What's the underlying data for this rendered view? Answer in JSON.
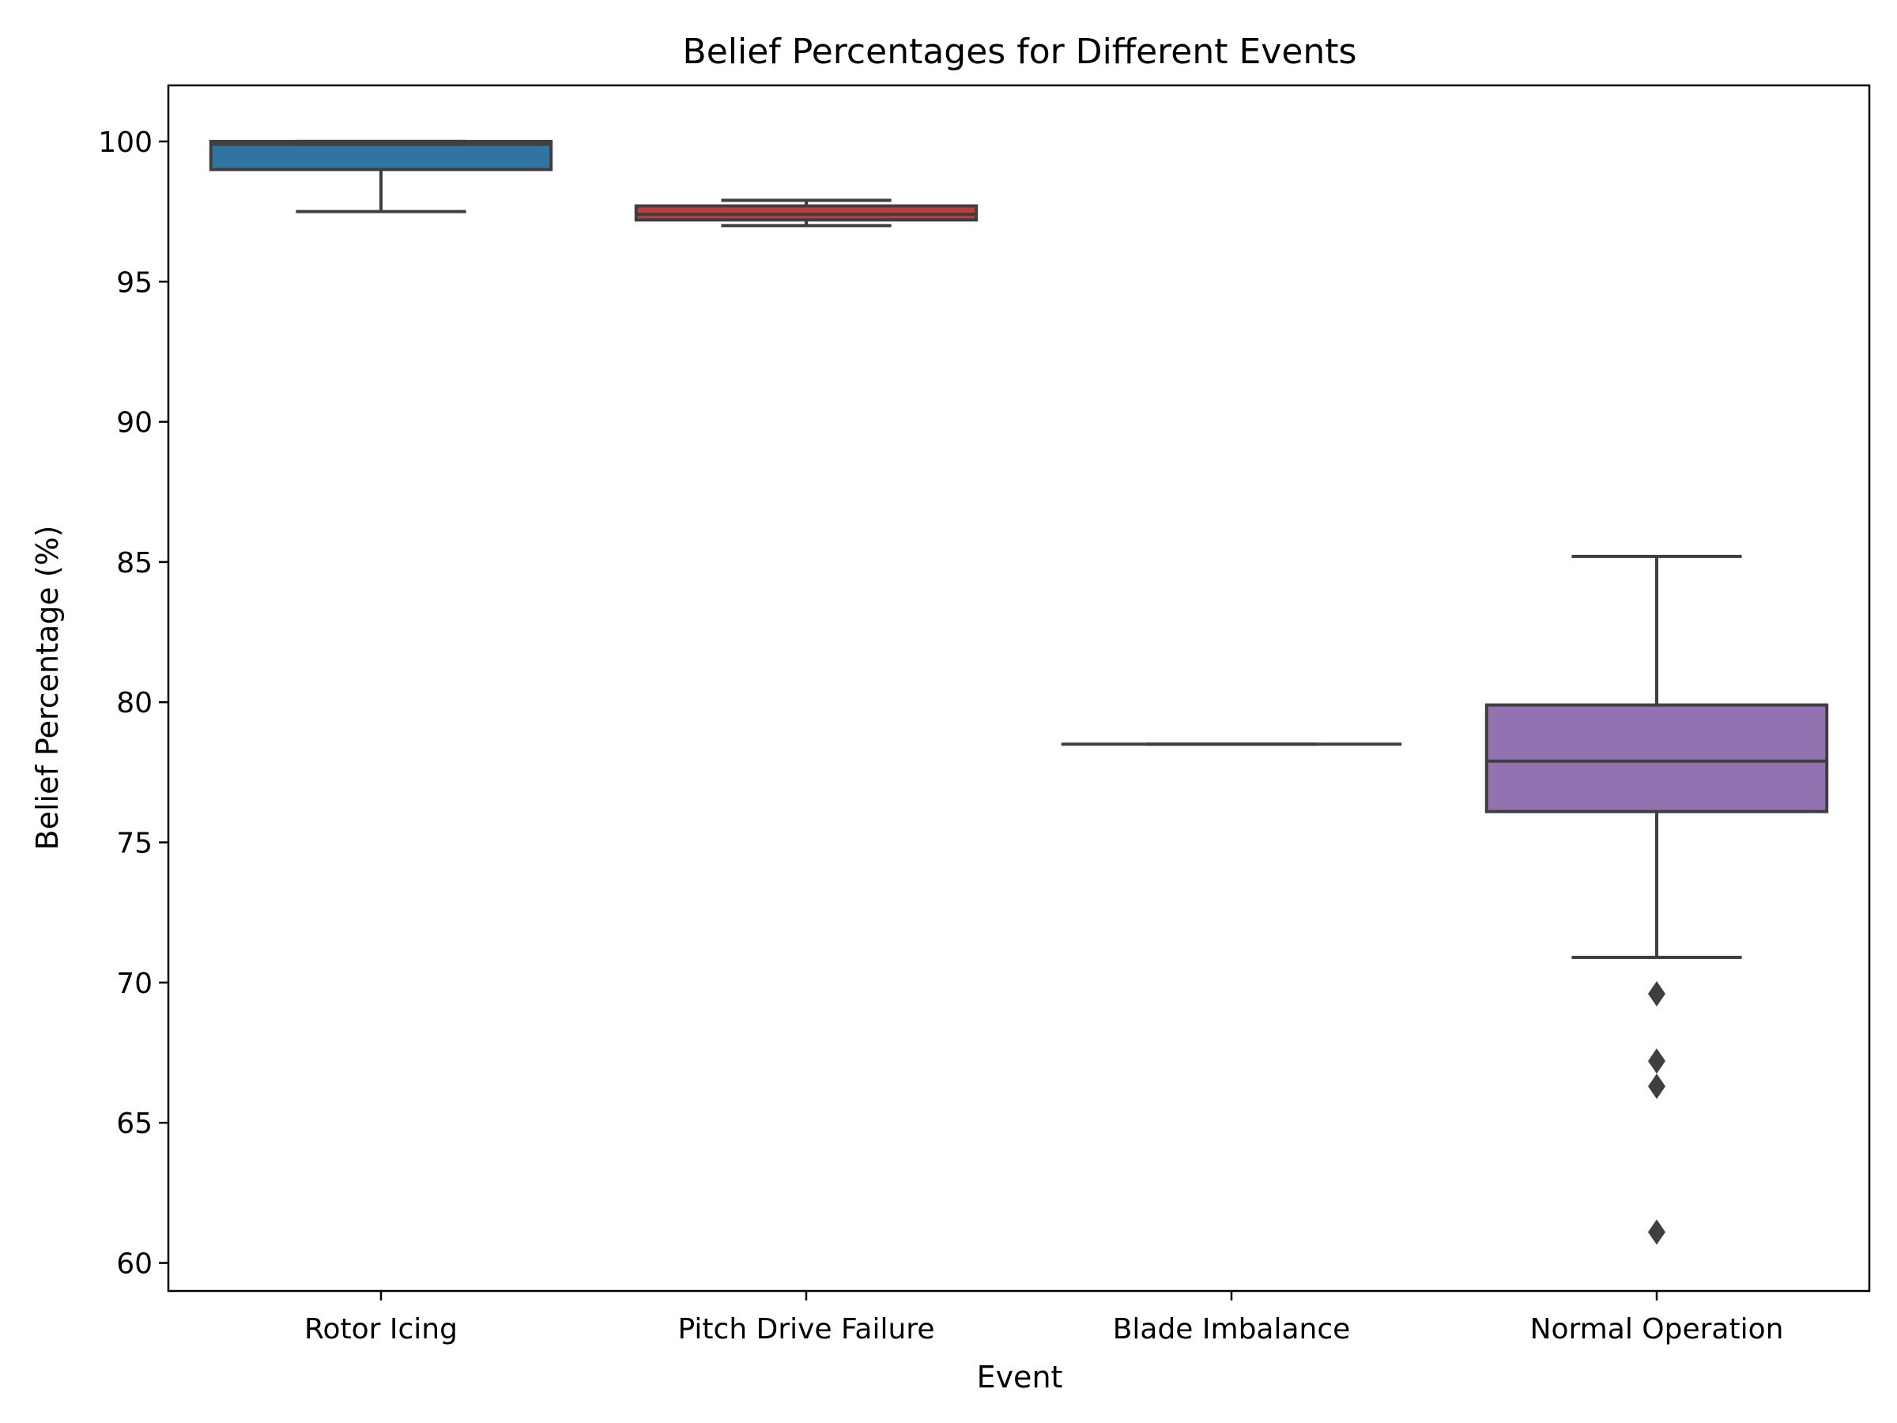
{
  "chart_data": {
    "type": "box",
    "title": "Belief Percentages for Different Events",
    "xlabel": "Event",
    "ylabel": "Belief Percentage (%)",
    "ylim": [
      59.0,
      102.0
    ],
    "yticks": [
      60,
      65,
      70,
      75,
      80,
      85,
      90,
      95,
      100
    ],
    "grid": false,
    "categories": [
      "Rotor Icing",
      "Pitch Drive Failure",
      "Blade Imbalance",
      "Normal Operation"
    ],
    "boxes": [
      {
        "category": "Rotor Icing",
        "whisker_low": 97.5,
        "q1": 99.0,
        "median": 99.9,
        "q3": 100.0,
        "whisker_high": 100.0,
        "outliers": [],
        "color": "#3274a1"
      },
      {
        "category": "Pitch Drive Failure",
        "whisker_low": 97.0,
        "q1": 97.2,
        "median": 97.4,
        "q3": 97.7,
        "whisker_high": 97.9,
        "outliers": [],
        "color": "#c03d3e"
      },
      {
        "category": "Blade Imbalance",
        "whisker_low": 78.5,
        "q1": 78.5,
        "median": 78.5,
        "q3": 78.5,
        "whisker_high": 78.5,
        "outliers": [],
        "color": "#3a923a"
      },
      {
        "category": "Normal Operation",
        "whisker_low": 70.9,
        "q1": 76.1,
        "median": 77.9,
        "q3": 79.9,
        "whisker_high": 85.2,
        "outliers": [
          69.6,
          67.2,
          66.3,
          61.1
        ],
        "color": "#9372b2"
      }
    ],
    "line_color": "#3f3f3f"
  }
}
